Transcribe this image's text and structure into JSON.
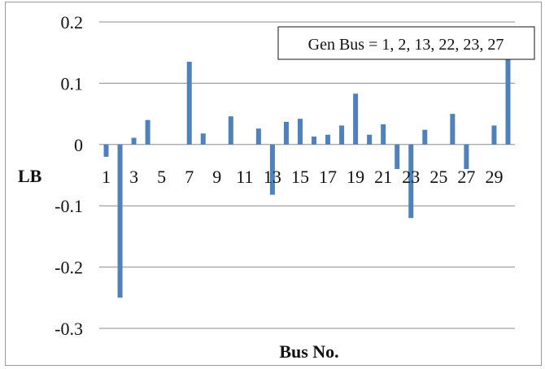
{
  "chart_data": {
    "type": "bar",
    "title": "",
    "xlabel": "Bus No.",
    "ylabel": "LB",
    "ylim": [
      -0.3,
      0.2
    ],
    "yticks": [
      0.2,
      0.1,
      0,
      -0.1,
      -0.2,
      -0.3
    ],
    "ytick_labels": [
      "0.2",
      "0.1",
      "0",
      "-0.1",
      "-0.2",
      "-0.3"
    ],
    "grid": true,
    "color": "#4f81bd",
    "categories": [
      "1",
      "2",
      "3",
      "4",
      "5",
      "6",
      "7",
      "8",
      "9",
      "10",
      "11",
      "12",
      "13",
      "14",
      "15",
      "16",
      "17",
      "18",
      "19",
      "20",
      "21",
      "22",
      "23",
      "24",
      "25",
      "26",
      "27",
      "28",
      "29",
      "30"
    ],
    "xtick_labels_shown": [
      "1",
      "3",
      "5",
      "7",
      "9",
      "11",
      "13",
      "15",
      "17",
      "19",
      "21",
      "23",
      "25",
      "27",
      "29"
    ],
    "values": [
      -0.02,
      -0.25,
      0.011,
      0.04,
      0,
      0,
      0.135,
      0.018,
      0,
      0.046,
      0,
      0.026,
      -0.082,
      0.037,
      0.042,
      0.013,
      0.016,
      0.031,
      0.083,
      0.016,
      0.033,
      -0.04,
      -0.12,
      0.024,
      0,
      0.05,
      -0.04,
      0,
      0.031,
      0.15
    ],
    "annotation": "Gen Bus = 1, 2, 13, 22, 23, 27"
  }
}
